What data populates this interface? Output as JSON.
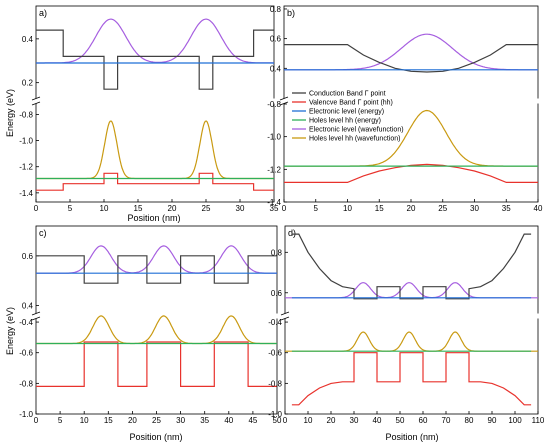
{
  "colors": {
    "conduction": "#404040",
    "valence": "#e8322c",
    "electron_energy": "#1f6fd6",
    "hole_energy": "#2fb05a",
    "electron_wf": "#a65fe0",
    "hole_wf": "#c99a12"
  },
  "shared": {
    "ylabel": "Energy (eV)",
    "xlabel": "Position (nm)"
  },
  "legend": {
    "placement": "panel-b-right",
    "entries": [
      {
        "label": "Conduction Band Γ point",
        "color_key": "conduction"
      },
      {
        "label": "Valencve Band Γ point (hh)",
        "color_key": "valence"
      },
      {
        "label": "Electronic level (energy)",
        "color_key": "electron_energy"
      },
      {
        "label": "Holes level hh (energy)",
        "color_key": "hole_energy"
      },
      {
        "label": "Electronic level (wavefunction)",
        "color_key": "electron_wf"
      },
      {
        "label": "Holes level hh (wavefunction)",
        "color_key": "hole_wf"
      }
    ]
  },
  "chart_data": [
    {
      "type": "line",
      "panel_label": "a)",
      "xlim": [
        0,
        35
      ],
      "xticks": [
        0,
        5,
        10,
        15,
        20,
        25,
        30,
        35
      ],
      "y_top_range": [
        0.13,
        0.55
      ],
      "y_top_ticks": [
        0.2,
        0.4
      ],
      "y_bottom_range": [
        -1.47,
        -0.72
      ],
      "y_bottom_ticks": [
        -0.8,
        -1.0,
        -1.2,
        -1.4
      ],
      "axis_break": true,
      "series": [
        {
          "key": "conduction",
          "x": [
            0,
            4,
            4,
            10,
            10,
            12,
            12,
            24,
            24,
            26,
            26,
            32,
            32,
            35
          ],
          "y": [
            0.44,
            0.44,
            0.32,
            0.32,
            0.17,
            0.17,
            0.32,
            0.32,
            0.17,
            0.17,
            0.32,
            0.32,
            0.44,
            0.44
          ]
        },
        {
          "key": "valence",
          "x": [
            0,
            4,
            4,
            10,
            10,
            12,
            12,
            24,
            24,
            26,
            26,
            32,
            32,
            35
          ],
          "y": [
            -1.38,
            -1.38,
            -1.33,
            -1.33,
            -1.25,
            -1.25,
            -1.33,
            -1.33,
            -1.25,
            -1.25,
            -1.33,
            -1.33,
            -1.38,
            -1.38
          ]
        },
        {
          "key": "electron_energy",
          "x": [
            0,
            35
          ],
          "y": [
            0.29,
            0.29
          ]
        },
        {
          "key": "hole_energy",
          "x": [
            0,
            35
          ],
          "y": [
            -1.29,
            -1.29
          ]
        }
      ],
      "wavefunctions": [
        {
          "key": "electron_wf",
          "base": 0.29,
          "amp": 0.2,
          "centers": [
            11,
            25
          ],
          "width": 2.2
        },
        {
          "key": "hole_wf",
          "base": -1.29,
          "amp": 0.44,
          "centers": [
            11,
            25
          ],
          "width": 0.9
        }
      ]
    },
    {
      "type": "line",
      "panel_label": "b)",
      "xlim": [
        0,
        40
      ],
      "xticks": [
        0,
        5,
        10,
        15,
        20,
        25,
        30,
        35,
        40
      ],
      "y_top_range": [
        0.2,
        0.82
      ],
      "y_top_ticks": [
        0.4,
        0.6,
        0.8
      ],
      "y_bottom_range": [
        -1.4,
        -0.8
      ],
      "y_bottom_ticks": [
        -0.8,
        -1.0,
        -1.2,
        -1.4
      ],
      "axis_break": true,
      "series": [
        {
          "key": "conduction",
          "x": [
            0,
            10,
            12.5,
            15,
            17.5,
            20,
            22.5,
            25,
            27.5,
            30,
            32.5,
            35,
            40
          ],
          "y": [
            0.56,
            0.56,
            0.49,
            0.44,
            0.4,
            0.38,
            0.375,
            0.38,
            0.4,
            0.44,
            0.49,
            0.56,
            0.56
          ]
        },
        {
          "key": "valence",
          "x": [
            0,
            10,
            12.5,
            15,
            17.5,
            20,
            22.5,
            25,
            27.5,
            30,
            32.5,
            35,
            40
          ],
          "y": [
            -1.28,
            -1.28,
            -1.24,
            -1.21,
            -1.19,
            -1.175,
            -1.17,
            -1.175,
            -1.19,
            -1.21,
            -1.24,
            -1.28,
            -1.28
          ]
        },
        {
          "key": "electron_energy",
          "x": [
            0,
            40
          ],
          "y": [
            0.39,
            0.39
          ]
        },
        {
          "key": "hole_energy",
          "x": [
            0,
            40
          ],
          "y": [
            -1.18,
            -1.18
          ]
        }
      ],
      "wavefunctions": [
        {
          "key": "electron_wf",
          "base": 0.39,
          "amp": 0.24,
          "centers": [
            22.5
          ],
          "width": 4.0
        },
        {
          "key": "hole_wf",
          "base": -1.18,
          "amp": 0.34,
          "centers": [
            22.5
          ],
          "width": 3.0
        }
      ]
    },
    {
      "type": "line",
      "panel_label": "c)",
      "xlim": [
        0,
        50
      ],
      "xticks": [
        0,
        5,
        10,
        15,
        20,
        25,
        30,
        35,
        40,
        45,
        50
      ],
      "y_top_range": [
        0.37,
        0.72
      ],
      "y_top_ticks": [
        0.4,
        0.6
      ],
      "y_bottom_range": [
        -1.0,
        -0.38
      ],
      "y_bottom_ticks": [
        -0.4,
        -0.6,
        -0.8,
        -1.0
      ],
      "axis_break": true,
      "series": [
        {
          "key": "conduction",
          "x": [
            0,
            10,
            10,
            17,
            17,
            23,
            23,
            30,
            30,
            37,
            37,
            44,
            44,
            50
          ],
          "y": [
            0.6,
            0.6,
            0.49,
            0.49,
            0.6,
            0.6,
            0.49,
            0.49,
            0.6,
            0.6,
            0.49,
            0.49,
            0.6,
            0.6
          ]
        },
        {
          "key": "valence",
          "x": [
            0,
            10,
            10,
            17,
            17,
            23,
            23,
            30,
            30,
            37,
            37,
            44,
            44,
            50
          ],
          "y": [
            -0.82,
            -0.82,
            -0.53,
            -0.53,
            -0.82,
            -0.82,
            -0.53,
            -0.53,
            -0.82,
            -0.82,
            -0.53,
            -0.53,
            -0.82,
            -0.82
          ]
        },
        {
          "key": "electron_energy",
          "x": [
            0,
            50
          ],
          "y": [
            0.53,
            0.53
          ]
        },
        {
          "key": "hole_energy",
          "x": [
            0,
            50
          ],
          "y": [
            -0.54,
            -0.54
          ]
        }
      ],
      "wavefunctions": [
        {
          "key": "electron_wf",
          "base": 0.53,
          "amp": 0.11,
          "centers": [
            13.5,
            26.5,
            40.5
          ],
          "width": 2.1
        },
        {
          "key": "hole_wf",
          "base": -0.54,
          "amp": 0.18,
          "centers": [
            13.5,
            26.5,
            40.5
          ],
          "width": 1.7
        }
      ]
    },
    {
      "type": "line",
      "panel_label": "d)",
      "xlim": [
        0,
        110
      ],
      "xticks": [
        0,
        10,
        20,
        30,
        40,
        50,
        60,
        70,
        80,
        90,
        100,
        110
      ],
      "y_top_range": [
        0.5,
        0.93
      ],
      "y_top_ticks": [
        0.6,
        0.8
      ],
      "y_bottom_range": [
        -1.0,
        -0.38
      ],
      "y_bottom_ticks": [
        -0.4,
        -0.6,
        -0.8,
        -1.0
      ],
      "axis_break": true,
      "series": [
        {
          "key": "conduction",
          "x": [
            3,
            6,
            10,
            15,
            20,
            25,
            30,
            30,
            40,
            40,
            50,
            50,
            60,
            60,
            70,
            70,
            80,
            80,
            85,
            90,
            95,
            100,
            104,
            107
          ],
          "y": [
            0.89,
            0.89,
            0.8,
            0.72,
            0.66,
            0.63,
            0.62,
            0.57,
            0.57,
            0.63,
            0.63,
            0.57,
            0.57,
            0.63,
            0.63,
            0.57,
            0.57,
            0.62,
            0.63,
            0.66,
            0.72,
            0.8,
            0.89,
            0.89
          ]
        },
        {
          "key": "valence",
          "x": [
            3,
            6,
            10,
            15,
            20,
            25,
            30,
            30,
            40,
            40,
            50,
            50,
            60,
            60,
            70,
            70,
            80,
            80,
            85,
            90,
            95,
            100,
            104,
            107
          ],
          "y": [
            -0.94,
            -0.94,
            -0.88,
            -0.83,
            -0.8,
            -0.79,
            -0.79,
            -0.6,
            -0.6,
            -0.79,
            -0.79,
            -0.6,
            -0.6,
            -0.79,
            -0.79,
            -0.6,
            -0.6,
            -0.79,
            -0.79,
            -0.8,
            -0.83,
            -0.88,
            -0.94,
            -0.94
          ]
        },
        {
          "key": "electron_energy",
          "x": [
            3,
            107
          ],
          "y": [
            0.575,
            0.575
          ]
        },
        {
          "key": "hole_energy",
          "x": [
            3,
            107
          ],
          "y": [
            -0.59,
            -0.59
          ]
        }
      ],
      "wavefunctions": [
        {
          "key": "electron_wf",
          "base": 0.575,
          "amp": 0.075,
          "centers": [
            34,
            54,
            74
          ],
          "width": 3.2
        },
        {
          "key": "hole_wf",
          "base": -0.59,
          "amp": 0.125,
          "centers": [
            34,
            54,
            74
          ],
          "width": 2.6
        }
      ]
    }
  ]
}
